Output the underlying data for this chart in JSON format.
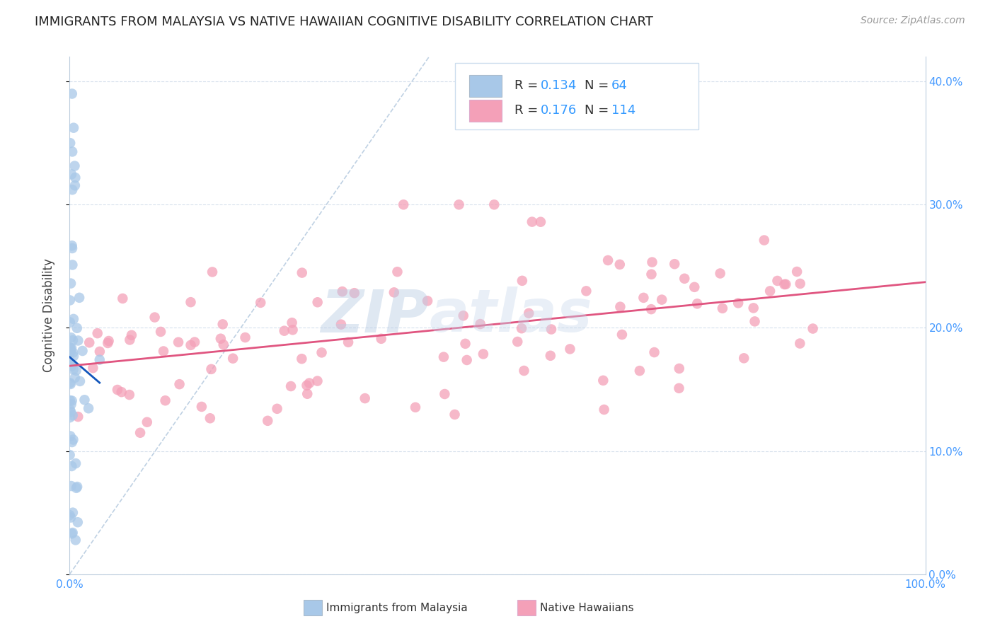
{
  "title": "IMMIGRANTS FROM MALAYSIA VS NATIVE HAWAIIAN COGNITIVE DISABILITY CORRELATION CHART",
  "source": "Source: ZipAtlas.com",
  "ylabel": "Cognitive Disability",
  "xlim": [
    0.0,
    1.0
  ],
  "ylim": [
    0.0,
    0.42
  ],
  "blue_R": 0.134,
  "blue_N": 64,
  "pink_R": 0.176,
  "pink_N": 114,
  "blue_color": "#a8c8e8",
  "pink_color": "#f4a0b8",
  "blue_line_color": "#1155bb",
  "pink_line_color": "#e05580",
  "diagonal_color": "#b8cce0",
  "legend_label_blue": "Immigrants from Malaysia",
  "legend_label_pink": "Native Hawaiians",
  "watermark_zip": "ZIP",
  "watermark_atlas": "atlas",
  "title_fontsize": 13,
  "source_fontsize": 10,
  "tick_fontsize": 11,
  "ylabel_fontsize": 12
}
